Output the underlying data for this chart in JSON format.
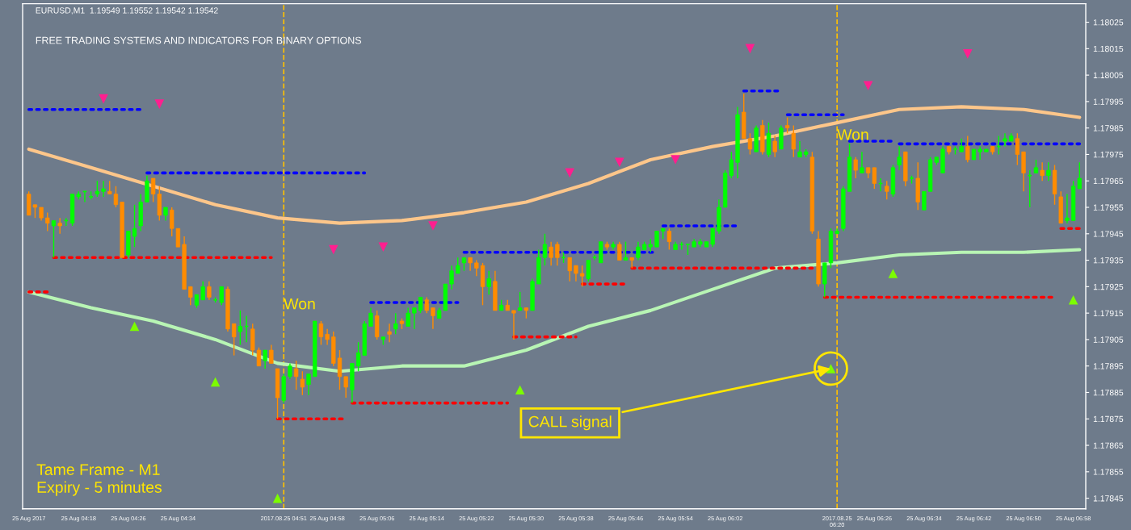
{
  "chart_data": {
    "type": "candlestick",
    "title": "EURUSD,M1  1.19549 1.19552 1.19542 1.19542",
    "subtitle": "FREE TRADING SYSTEMS AND INDICATORS FOR BINARY OPTIONS",
    "colors": [
      "#ff8c00",
      "#ff8c00",
      "#ff8c00",
      "#ff8c00",
      "#00ff00",
      "#ff8c00",
      "#00ff00",
      "#00ff00",
      "#00ff00",
      "#00ff00",
      "#00ff00",
      "#00ff00",
      "#00ff00",
      "#ff8c00",
      "#ff8c00",
      "#ff8c00",
      "#00ff00",
      "#00ff00",
      "#00ff00",
      "#00ff00",
      "#ff8c00",
      "#ff8c00",
      "#00ff00",
      "#ff8c00",
      "#ff8c00",
      "#ff8c00",
      "#ff8c00",
      "#00ff00",
      "#00ff00",
      "#ff8c00",
      "#00ff00",
      "#00ff00",
      "#ff8c00",
      "#ff8c00",
      "#00ff00",
      "#00ff00",
      "#ff8c00",
      "#ff8c00",
      "#00ff00",
      "#ff8c00",
      "#ff8c00",
      "#00ff00",
      "#00ff00",
      "#ff8c00",
      "#ff8c00",
      "#00ff00",
      "#00ff00",
      "#ff8c00",
      "#ff8c00",
      "#ff8c00",
      "#ff8c00",
      "#ff8c00",
      "#00ff00",
      "#00ff00",
      "#00ff00",
      "#00ff00",
      "#ff8c00",
      "#00ff00",
      "#ff8c00",
      "#00ff00",
      "#ff8c00",
      "#00ff00",
      "#00ff00",
      "#00ff00",
      "#ff8c00",
      "#ff8c00",
      "#00ff00",
      "#00ff00",
      "#00ff00",
      "#00ff00",
      "#00ff00",
      "#ff8c00",
      "#ff8c00",
      "#ff8c00",
      "#00ff00",
      "#ff8c00",
      "#00ff00",
      "#ff8c00",
      "#ff8c00",
      "#00ff00",
      "#ff8c00",
      "#00ff00",
      "#00ff00",
      "#00ff00",
      "#ff8c00",
      "#ff8c00",
      "#00ff00",
      "#ff8c00",
      "#ff8c00",
      "#ff8c00",
      "#00ff00",
      "#00ff00",
      "#00ff00",
      "#ff8c00",
      "#00ff00",
      "#ff8c00",
      "#00ff00",
      "#ff8c00",
      "#00ff00",
      "#00ff00",
      "#00ff00",
      "#00ff00",
      "#00ff00",
      "#ff8c00",
      "#00ff00",
      "#00ff00",
      "#00ff00",
      "#00ff00",
      "#00ff00",
      "#00ff00",
      "#00ff00",
      "#00ff00",
      "#00ff00",
      "#00ff00",
      "#00ff00",
      "#ff8c00",
      "#ff8c00",
      "#00ff00",
      "#ff8c00",
      "#00ff00",
      "#ff8c00",
      "#00ff00",
      "#ff8c00",
      "#ff8c00",
      "#00ff00",
      "#00ff00",
      "#ff8c00",
      "#ff8c00",
      "#00ff00",
      "#00ff00",
      "#00ff00",
      "#00ff00",
      "#00ff00",
      "#ff8c00",
      "#00ff00",
      "#ff8c00",
      "#ff8c00",
      "#00ff00",
      "#ff8c00",
      "#00ff00",
      "#00ff00",
      "#ff8c00",
      "#00ff00",
      "#ff8c00",
      "#00ff00",
      "#00ff00",
      "#00ff00",
      "#00ff00",
      "#ff8c00",
      "#00ff00",
      "#00ff00",
      "#ff8c00",
      "#00ff00",
      "#00ff00",
      "#00ff00",
      "#ff8c00",
      "#00ff00",
      "#00ff00",
      "#00ff00",
      "#ff8c00",
      "#ff8c00",
      "#00ff00",
      "#00ff00",
      "#ff8c00",
      "#00ff00",
      "#ff8c00",
      "#ff8c00",
      "#00ff00",
      "#00ff00",
      "#00ff00"
    ],
    "x": [
      "2017-08-25T04:10",
      "2017-08-25T04:11",
      "2017-08-25T04:12",
      "2017-08-25T04:13",
      "2017-08-25T04:14",
      "2017-08-25T04:15",
      "2017-08-25T04:16",
      "2017-08-25T04:17",
      "2017-08-25T04:18",
      "2017-08-25T04:19",
      "2017-08-25T04:20",
      "2017-08-25T04:21",
      "2017-08-25T04:22",
      "2017-08-25T04:23",
      "2017-08-25T04:24",
      "2017-08-25T04:25",
      "2017-08-25T04:26",
      "2017-08-25T04:27",
      "2017-08-25T04:28",
      "2017-08-25T04:29",
      "2017-08-25T04:30",
      "2017-08-25T04:31",
      "2017-08-25T04:32",
      "2017-08-25T04:33",
      "2017-08-25T04:34",
      "2017-08-25T04:35",
      "2017-08-25T04:36",
      "2017-08-25T04:37",
      "2017-08-25T04:38",
      "2017-08-25T04:39",
      "2017-08-25T04:40",
      "2017-08-25T04:41",
      "2017-08-25T04:42",
      "2017-08-25T04:43",
      "2017-08-25T04:44",
      "2017-08-25T04:45",
      "2017-08-25T04:46",
      "2017-08-25T04:47",
      "2017-08-25T04:48",
      "2017-08-25T04:49",
      "2017-08-25T04:50",
      "2017-08-25T04:51",
      "2017-08-25T04:52",
      "2017-08-25T04:53",
      "2017-08-25T04:54",
      "2017-08-25T04:55",
      "2017-08-25T04:56",
      "2017-08-25T04:57",
      "2017-08-25T04:58",
      "2017-08-25T04:59",
      "2017-08-25T05:00",
      "2017-08-25T05:01",
      "2017-08-25T05:02",
      "2017-08-25T05:03",
      "2017-08-25T05:04",
      "2017-08-25T05:05",
      "2017-08-25T05:06",
      "2017-08-25T05:07",
      "2017-08-25T05:08",
      "2017-08-25T05:09",
      "2017-08-25T05:10",
      "2017-08-25T05:11",
      "2017-08-25T05:12",
      "2017-08-25T05:13",
      "2017-08-25T05:14",
      "2017-08-25T05:15",
      "2017-08-25T05:16",
      "2017-08-25T05:17",
      "2017-08-25T05:18",
      "2017-08-25T05:19",
      "2017-08-25T05:20",
      "2017-08-25T05:21",
      "2017-08-25T05:22",
      "2017-08-25T05:23",
      "2017-08-25T05:24",
      "2017-08-25T05:25",
      "2017-08-25T05:26",
      "2017-08-25T05:27",
      "2017-08-25T05:28",
      "2017-08-25T05:29",
      "2017-08-25T05:30",
      "2017-08-25T05:31",
      "2017-08-25T05:32",
      "2017-08-25T05:33",
      "2017-08-25T05:34",
      "2017-08-25T05:35",
      "2017-08-25T05:36",
      "2017-08-25T05:37",
      "2017-08-25T05:38",
      "2017-08-25T05:39",
      "2017-08-25T05:40",
      "2017-08-25T05:41",
      "2017-08-25T05:42",
      "2017-08-25T05:43",
      "2017-08-25T05:44",
      "2017-08-25T05:45",
      "2017-08-25T05:46",
      "2017-08-25T05:47",
      "2017-08-25T05:48",
      "2017-08-25T05:49",
      "2017-08-25T05:50",
      "2017-08-25T05:51",
      "2017-08-25T05:52",
      "2017-08-25T05:53",
      "2017-08-25T05:54",
      "2017-08-25T05:55",
      "2017-08-25T05:56",
      "2017-08-25T05:57",
      "2017-08-25T05:58",
      "2017-08-25T05:59",
      "2017-08-25T06:00",
      "2017-08-25T06:01",
      "2017-08-25T06:02",
      "2017-08-25T06:03",
      "2017-08-25T06:04",
      "2017-08-25T06:05",
      "2017-08-25T06:06",
      "2017-08-25T06:07",
      "2017-08-25T06:08",
      "2017-08-25T06:09",
      "2017-08-25T06:10",
      "2017-08-25T06:11",
      "2017-08-25T06:12",
      "2017-08-25T06:13",
      "2017-08-25T06:14",
      "2017-08-25T06:15",
      "2017-08-25T06:16",
      "2017-08-25T06:17",
      "2017-08-25T06:18",
      "2017-08-25T06:19",
      "2017-08-25T06:20",
      "2017-08-25T06:21",
      "2017-08-25T06:22",
      "2017-08-25T06:23",
      "2017-08-25T06:24",
      "2017-08-25T06:25",
      "2017-08-25T06:26",
      "2017-08-25T06:27",
      "2017-08-25T06:28",
      "2017-08-25T06:29",
      "2017-08-25T06:30",
      "2017-08-25T06:31",
      "2017-08-25T06:32",
      "2017-08-25T06:33",
      "2017-08-25T06:34",
      "2017-08-25T06:35",
      "2017-08-25T06:36",
      "2017-08-25T06:37",
      "2017-08-25T06:38",
      "2017-08-25T06:39",
      "2017-08-25T06:40",
      "2017-08-25T06:41",
      "2017-08-25T06:42",
      "2017-08-25T06:43",
      "2017-08-25T06:44",
      "2017-08-25T06:45",
      "2017-08-25T06:46",
      "2017-08-25T06:47",
      "2017-08-25T06:48",
      "2017-08-25T06:49",
      "2017-08-25T06:50",
      "2017-08-25T06:51",
      "2017-08-25T06:52",
      "2017-08-25T06:53",
      "2017-08-25T06:54",
      "2017-08-25T06:55",
      "2017-08-25T06:56",
      "2017-08-25T06:57",
      "2017-08-25T06:58",
      "2017-08-25T06:59"
    ],
    "ohlc": [
      [
        1.1796,
        1.17961,
        1.17952,
        1.17952
      ],
      [
        1.17956,
        1.17956,
        1.17951,
        1.17955
      ],
      [
        1.17955,
        1.17955,
        1.1795,
        1.17951
      ],
      [
        1.17951,
        1.17953,
        1.17946,
        1.17949
      ],
      [
        1.17948,
        1.1795,
        1.17936,
        1.1795
      ],
      [
        1.17949,
        1.17951,
        1.17945,
        1.17948
      ],
      [
        1.1795,
        1.17951,
        1.17948,
        1.1795
      ],
      [
        1.17949,
        1.1796,
        1.17948,
        1.1796
      ],
      [
        1.17959,
        1.17961,
        1.17958,
        1.1796
      ],
      [
        1.17961,
        1.17961,
        1.17957,
        1.17961
      ],
      [
        1.17959,
        1.17961,
        1.17958,
        1.17959
      ],
      [
        1.1796,
        1.17965,
        1.17959,
        1.17961
      ],
      [
        1.17961,
        1.17965,
        1.17959,
        1.17962
      ],
      [
        1.17961,
        1.17965,
        1.1796,
        1.1796
      ],
      [
        1.1796,
        1.17963,
        1.17955,
        1.17956
      ],
      [
        1.17957,
        1.17957,
        1.17936,
        1.17936
      ],
      [
        1.17937,
        1.17946,
        1.17936,
        1.17946
      ],
      [
        1.17944,
        1.17956,
        1.1794,
        1.17947
      ],
      [
        1.17948,
        1.1796,
        1.17946,
        1.17957
      ],
      [
        1.17957,
        1.17967,
        1.17957,
        1.17965
      ],
      [
        1.17966,
        1.17966,
        1.17957,
        1.1796
      ],
      [
        1.1796,
        1.17963,
        1.1795,
        1.17952
      ],
      [
        1.17952,
        1.17955,
        1.1795,
        1.17955
      ],
      [
        1.17954,
        1.17955,
        1.17944,
        1.17947
      ],
      [
        1.17947,
        1.17947,
        1.1794,
        1.1794
      ],
      [
        1.17941,
        1.17944,
        1.17924,
        1.17924
      ],
      [
        1.17925,
        1.17925,
        1.17918,
        1.17921
      ],
      [
        1.17918,
        1.17922,
        1.17917,
        1.17922
      ],
      [
        1.1792,
        1.17927,
        1.1792,
        1.17925
      ],
      [
        1.17925,
        1.17927,
        1.1792,
        1.17921
      ],
      [
        1.1792,
        1.17921,
        1.17919,
        1.1792
      ],
      [
        1.17919,
        1.17925,
        1.17918,
        1.17925
      ],
      [
        1.17924,
        1.17925,
        1.17908,
        1.17909
      ],
      [
        1.17911,
        1.17911,
        1.17899,
        1.17906
      ],
      [
        1.17908,
        1.17916,
        1.17903,
        1.1791
      ],
      [
        1.1791,
        1.17914,
        1.17904,
        1.1791
      ],
      [
        1.17909,
        1.17911,
        1.17899,
        1.17901
      ],
      [
        1.17901,
        1.17902,
        1.17895,
        1.17895
      ],
      [
        1.17897,
        1.17901,
        1.17894,
        1.17901
      ],
      [
        1.17901,
        1.17903,
        1.17896,
        1.17896
      ],
      [
        1.17894,
        1.17894,
        1.17875,
        1.17883
      ],
      [
        1.17882,
        1.17892,
        1.17881,
        1.17891
      ],
      [
        1.17891,
        1.17896,
        1.1789,
        1.17895
      ],
      [
        1.17894,
        1.17897,
        1.17886,
        1.17891
      ],
      [
        1.1789,
        1.17893,
        1.17884,
        1.17887
      ],
      [
        1.17888,
        1.17892,
        1.17884,
        1.17892
      ],
      [
        1.17891,
        1.17912,
        1.17891,
        1.17912
      ],
      [
        1.17911,
        1.17912,
        1.17903,
        1.17906
      ],
      [
        1.17907,
        1.17909,
        1.17903,
        1.17905
      ],
      [
        1.17906,
        1.17908,
        1.17895,
        1.17896
      ],
      [
        1.17898,
        1.17901,
        1.17886,
        1.17891
      ],
      [
        1.17891,
        1.17891,
        1.17883,
        1.17887
      ],
      [
        1.17886,
        1.17896,
        1.17881,
        1.17896
      ],
      [
        1.17895,
        1.17904,
        1.17893,
        1.179
      ],
      [
        1.17899,
        1.17912,
        1.17899,
        1.17911
      ],
      [
        1.1791,
        1.17917,
        1.1791,
        1.17915
      ],
      [
        1.17914,
        1.17916,
        1.17905,
        1.17906
      ],
      [
        1.17905,
        1.17906,
        1.17903,
        1.17906
      ],
      [
        1.17908,
        1.17911,
        1.17904,
        1.17907
      ],
      [
        1.17909,
        1.17915,
        1.17907,
        1.17911
      ],
      [
        1.17912,
        1.17913,
        1.17909,
        1.17911
      ],
      [
        1.1791,
        1.17917,
        1.1791,
        1.17915
      ],
      [
        1.17915,
        1.17917,
        1.17909,
        1.17917
      ],
      [
        1.17916,
        1.17921,
        1.17915,
        1.17921
      ],
      [
        1.1792,
        1.17921,
        1.17915,
        1.17916
      ],
      [
        1.17917,
        1.17917,
        1.17909,
        1.17914
      ],
      [
        1.17913,
        1.17917,
        1.17913,
        1.17916
      ],
      [
        1.17916,
        1.17926,
        1.17916,
        1.17926
      ],
      [
        1.17926,
        1.17933,
        1.17924,
        1.17931
      ],
      [
        1.1793,
        1.17936,
        1.1793,
        1.17933
      ],
      [
        1.17934,
        1.17936,
        1.17931,
        1.17936
      ],
      [
        1.17936,
        1.17936,
        1.17931,
        1.17934
      ],
      [
        1.17934,
        1.17935,
        1.17929,
        1.17932
      ],
      [
        1.17933,
        1.17934,
        1.17918,
        1.17925
      ],
      [
        1.17925,
        1.17931,
        1.17922,
        1.17928
      ],
      [
        1.17927,
        1.17931,
        1.17916,
        1.17916
      ],
      [
        1.17916,
        1.1792,
        1.17916,
        1.17918
      ],
      [
        1.17918,
        1.1792,
        1.17916,
        1.17916
      ],
      [
        1.17916,
        1.17916,
        1.17905,
        1.17915
      ],
      [
        1.17916,
        1.17923,
        1.17916,
        1.17917
      ],
      [
        1.17917,
        1.17917,
        1.17913,
        1.17916
      ],
      [
        1.17916,
        1.17928,
        1.17916,
        1.17927
      ],
      [
        1.17926,
        1.17939,
        1.17926,
        1.17936
      ],
      [
        1.17936,
        1.17945,
        1.17933,
        1.17941
      ],
      [
        1.1794,
        1.17942,
        1.17933,
        1.17936
      ],
      [
        1.17941,
        1.17942,
        1.17933,
        1.17936
      ],
      [
        1.17936,
        1.17938,
        1.17934,
        1.17936
      ],
      [
        1.17936,
        1.17936,
        1.17927,
        1.17931
      ],
      [
        1.17933,
        1.17933,
        1.17927,
        1.1793
      ],
      [
        1.1793,
        1.17933,
        1.17925,
        1.17929
      ],
      [
        1.17928,
        1.17935,
        1.17927,
        1.17935
      ],
      [
        1.17936,
        1.17937,
        1.17935,
        1.17936
      ],
      [
        1.17934,
        1.17942,
        1.17934,
        1.17942
      ],
      [
        1.17941,
        1.17942,
        1.17939,
        1.1794
      ],
      [
        1.1794,
        1.17942,
        1.17939,
        1.17941
      ],
      [
        1.17941,
        1.17942,
        1.17935,
        1.17935
      ],
      [
        1.17935,
        1.17942,
        1.17935,
        1.17936
      ],
      [
        1.17936,
        1.17936,
        1.17932,
        1.17935
      ],
      [
        1.17936,
        1.17942,
        1.17935,
        1.1794
      ],
      [
        1.17939,
        1.17942,
        1.17939,
        1.17941
      ],
      [
        1.1794,
        1.17943,
        1.17938,
        1.17941
      ],
      [
        1.1794,
        1.17946,
        1.1794,
        1.17946
      ],
      [
        1.17946,
        1.17947,
        1.17943,
        1.17947
      ],
      [
        1.17946,
        1.17947,
        1.17939,
        1.17942
      ],
      [
        1.17939,
        1.17942,
        1.17939,
        1.17941
      ],
      [
        1.17941,
        1.17942,
        1.17939,
        1.17941
      ],
      [
        1.17941,
        1.17941,
        1.17937,
        1.17941
      ],
      [
        1.1794,
        1.17943,
        1.1794,
        1.17942
      ],
      [
        1.17941,
        1.17943,
        1.1794,
        1.17942
      ],
      [
        1.1794,
        1.17942,
        1.1794,
        1.17942
      ],
      [
        1.17941,
        1.17947,
        1.1794,
        1.17947
      ],
      [
        1.17946,
        1.17958,
        1.17945,
        1.17955
      ],
      [
        1.17955,
        1.17969,
        1.17955,
        1.17968
      ],
      [
        1.17967,
        1.17976,
        1.17966,
        1.17973
      ],
      [
        1.17972,
        1.17993,
        1.17966,
        1.1799
      ],
      [
        1.17991,
        1.17998,
        1.17981,
        1.17981
      ],
      [
        1.17981,
        1.17983,
        1.17975,
        1.17977
      ],
      [
        1.17976,
        1.17986,
        1.17976,
        1.17985
      ],
      [
        1.17986,
        1.17988,
        1.17975,
        1.17976
      ],
      [
        1.17975,
        1.17987,
        1.17974,
        1.17983
      ],
      [
        1.1798,
        1.17982,
        1.17974,
        1.17976
      ],
      [
        1.17977,
        1.17986,
        1.17977,
        1.17985
      ],
      [
        1.17986,
        1.17989,
        1.17983,
        1.17985
      ],
      [
        1.17983,
        1.17986,
        1.17974,
        1.17977
      ],
      [
        1.17974,
        1.1798,
        1.17974,
        1.17976
      ],
      [
        1.17975,
        1.17977,
        1.17974,
        1.17976
      ],
      [
        1.17974,
        1.17976,
        1.17945,
        1.17946
      ],
      [
        1.17943,
        1.17946,
        1.17925,
        1.17926
      ],
      [
        1.17926,
        1.17934,
        1.17921,
        1.17934
      ],
      [
        1.17934,
        1.17947,
        1.17932,
        1.17946
      ],
      [
        1.17945,
        1.17947,
        1.17945,
        1.17946
      ],
      [
        1.17947,
        1.17963,
        1.17946,
        1.17962
      ],
      [
        1.17961,
        1.17979,
        1.17961,
        1.17974
      ],
      [
        1.17973,
        1.17974,
        1.17966,
        1.17969
      ],
      [
        1.17968,
        1.17976,
        1.17968,
        1.1797
      ],
      [
        1.1797,
        1.1797,
        1.17966,
        1.17968
      ],
      [
        1.1797,
        1.1797,
        1.17962,
        1.17964
      ],
      [
        1.17964,
        1.17966,
        1.17961,
        1.17964
      ],
      [
        1.17963,
        1.17965,
        1.17958,
        1.17961
      ],
      [
        1.1796,
        1.17971,
        1.17959,
        1.1797
      ],
      [
        1.17971,
        1.17978,
        1.17969,
        1.17974
      ],
      [
        1.17976,
        1.17976,
        1.17963,
        1.17965
      ],
      [
        1.17966,
        1.17967,
        1.17964,
        1.17966
      ],
      [
        1.17966,
        1.17972,
        1.17954,
        1.17957
      ],
      [
        1.17954,
        1.17961,
        1.17954,
        1.17961
      ],
      [
        1.17961,
        1.17974,
        1.17961,
        1.17973
      ],
      [
        1.17972,
        1.17974,
        1.17971,
        1.17974
      ],
      [
        1.17968,
        1.17978,
        1.17968,
        1.17977
      ],
      [
        1.17978,
        1.17978,
        1.17975,
        1.17976
      ],
      [
        1.17977,
        1.17978,
        1.17975,
        1.17977
      ],
      [
        1.17976,
        1.17981,
        1.17976,
        1.17978
      ],
      [
        1.17978,
        1.17982,
        1.17972,
        1.17973
      ],
      [
        1.17973,
        1.17977,
        1.17973,
        1.17977
      ],
      [
        1.17976,
        1.17978,
        1.17973,
        1.17977
      ],
      [
        1.17976,
        1.17977,
        1.17976,
        1.17977
      ],
      [
        1.17978,
        1.17978,
        1.17975,
        1.17976
      ],
      [
        1.17978,
        1.17982,
        1.17975,
        1.17978
      ],
      [
        1.1798,
        1.17983,
        1.17978,
        1.17981
      ],
      [
        1.1798,
        1.17983,
        1.1798,
        1.17982
      ],
      [
        1.17981,
        1.17983,
        1.17971,
        1.17975
      ],
      [
        1.17976,
        1.17976,
        1.17961,
        1.17968
      ],
      [
        1.17967,
        1.17969,
        1.17955,
        1.17967
      ],
      [
        1.17968,
        1.17973,
        1.17968,
        1.1797
      ],
      [
        1.17969,
        1.17972,
        1.17965,
        1.17967
      ],
      [
        1.17967,
        1.17972,
        1.17965,
        1.17969
      ],
      [
        1.17969,
        1.17971,
        1.17956,
        1.1796
      ],
      [
        1.17959,
        1.17961,
        1.17949,
        1.17949
      ],
      [
        1.1795,
        1.1796,
        1.17949,
        1.17951
      ],
      [
        1.1795,
        1.17965,
        1.1795,
        1.17963
      ],
      [
        1.17962,
        1.17972,
        1.17962,
        1.17966
      ]
    ],
    "series": [
      {
        "type": "line",
        "color": "#fdc68a",
        "line_style": "solid",
        "x": [
          "2017-08-25T04:10",
          "2017-08-25T04:20",
          "2017-08-25T04:30",
          "2017-08-25T04:40",
          "2017-08-25T04:50",
          "2017-08-25T05:00",
          "2017-08-25T05:10",
          "2017-08-25T05:20",
          "2017-08-25T05:30",
          "2017-08-25T05:40",
          "2017-08-25T05:50",
          "2017-08-25T06:00",
          "2017-08-25T06:10",
          "2017-08-25T06:20",
          "2017-08-25T06:30",
          "2017-08-25T06:40",
          "2017-08-25T06:50",
          "2017-08-25T06:59"
        ],
        "values": [
          1.17977,
          1.1797,
          1.17963,
          1.17956,
          1.17951,
          1.17949,
          1.1795,
          1.17953,
          1.17957,
          1.17964,
          1.17973,
          1.17978,
          1.17982,
          1.17987,
          1.17992,
          1.17993,
          1.17992,
          1.17989
        ]
      },
      {
        "type": "line",
        "color": "#b8f5b4",
        "line_style": "solid",
        "x": [
          "2017-08-25T04:10",
          "2017-08-25T04:20",
          "2017-08-25T04:30",
          "2017-08-25T04:40",
          "2017-08-25T04:50",
          "2017-08-25T05:00",
          "2017-08-25T05:10",
          "2017-08-25T05:20",
          "2017-08-25T05:30",
          "2017-08-25T05:40",
          "2017-08-25T05:50",
          "2017-08-25T06:00",
          "2017-08-25T06:10",
          "2017-08-25T06:20",
          "2017-08-25T06:30",
          "2017-08-25T06:40",
          "2017-08-25T06:50",
          "2017-08-25T06:59"
        ],
        "values": [
          1.17923,
          1.17917,
          1.17912,
          1.17905,
          1.17896,
          1.17893,
          1.17895,
          1.17895,
          1.17901,
          1.1791,
          1.17916,
          1.17924,
          1.17932,
          1.17934,
          1.17937,
          1.17938,
          1.17938,
          1.17939
        ]
      },
      {
        "type": "line",
        "color": "#0000ff",
        "line_style": "dotted",
        "x": [
          "2017-08-25T04:10",
          "2017-08-25T04:28"
        ],
        "values": [
          1.17992,
          1.17992
        ]
      },
      {
        "type": "line",
        "color": "#0000ff",
        "line_style": "dotted",
        "x": [
          "2017-08-25T04:29",
          "2017-08-25T05:04"
        ],
        "values": [
          1.17968,
          1.17968
        ]
      },
      {
        "type": "line",
        "color": "#0000ff",
        "line_style": "dotted",
        "x": [
          "2017-08-25T05:05",
          "2017-08-25T05:19"
        ],
        "values": [
          1.17919,
          1.17919
        ]
      },
      {
        "type": "line",
        "color": "#0000ff",
        "line_style": "dotted",
        "x": [
          "2017-08-25T05:20",
          "2017-08-25T05:51"
        ],
        "values": [
          1.17938,
          1.17938
        ]
      },
      {
        "type": "line",
        "color": "#0000ff",
        "line_style": "dotted",
        "x": [
          "2017-08-25T05:52",
          "2017-08-25T06:04"
        ],
        "values": [
          1.17948,
          1.17948
        ]
      },
      {
        "type": "line",
        "color": "#0000ff",
        "line_style": "dotted",
        "x": [
          "2017-08-25T06:05",
          "2017-08-25T06:11"
        ],
        "values": [
          1.17999,
          1.17999
        ]
      },
      {
        "type": "line",
        "color": "#0000ff",
        "line_style": "dotted",
        "x": [
          "2017-08-25T06:12",
          "2017-08-25T06:21"
        ],
        "values": [
          1.1799,
          1.1799
        ]
      },
      {
        "type": "line",
        "color": "#0000ff",
        "line_style": "dotted",
        "x": [
          "2017-08-25T06:22",
          "2017-08-25T06:29"
        ],
        "values": [
          1.1798,
          1.1798
        ]
      },
      {
        "type": "line",
        "color": "#0000ff",
        "line_style": "dotted",
        "x": [
          "2017-08-25T06:30",
          "2017-08-25T06:59"
        ],
        "values": [
          1.17979,
          1.17979
        ]
      },
      {
        "type": "line",
        "color": "#ff0000",
        "line_style": "dotted",
        "x": [
          "2017-08-25T04:10",
          "2017-08-25T04:13"
        ],
        "values": [
          1.17923,
          1.17923
        ]
      },
      {
        "type": "line",
        "color": "#ff0000",
        "line_style": "dotted",
        "x": [
          "2017-08-25T04:14",
          "2017-08-25T04:49"
        ],
        "values": [
          1.17936,
          1.17936
        ]
      },
      {
        "type": "line",
        "color": "#ff0000",
        "line_style": "dotted",
        "x": [
          "2017-08-25T04:50",
          "2017-08-25T05:01"
        ],
        "values": [
          1.17875,
          1.17875
        ]
      },
      {
        "type": "line",
        "color": "#ff0000",
        "line_style": "dotted",
        "x": [
          "2017-08-25T05:02",
          "2017-08-25T05:27"
        ],
        "values": [
          1.17881,
          1.17881
        ]
      },
      {
        "type": "line",
        "color": "#ff0000",
        "line_style": "dotted",
        "x": [
          "2017-08-25T05:28",
          "2017-08-25T05:38"
        ],
        "values": [
          1.17906,
          1.17906
        ]
      },
      {
        "type": "line",
        "color": "#ff0000",
        "line_style": "dotted",
        "x": [
          "2017-08-25T05:39",
          "2017-08-25T05:46"
        ],
        "values": [
          1.17926,
          1.17926
        ]
      },
      {
        "type": "line",
        "color": "#ff0000",
        "line_style": "dotted",
        "x": [
          "2017-08-25T05:47",
          "2017-08-25T06:16"
        ],
        "values": [
          1.17932,
          1.17932
        ]
      },
      {
        "type": "line",
        "color": "#ff0000",
        "line_style": "dotted",
        "x": [
          "2017-08-25T06:18",
          "2017-08-25T06:55"
        ],
        "values": [
          1.17921,
          1.17921
        ]
      },
      {
        "type": "line",
        "color": "#ff0000",
        "line_style": "dotted",
        "x": [
          "2017-08-25T06:56",
          "2017-08-25T06:59"
        ],
        "values": [
          1.17947,
          1.17947
        ]
      },
      {
        "type": "scatter",
        "color": "#ff1f8f",
        "marker": "triangle-down",
        "x": [
          "2017-08-25T04:22",
          "2017-08-25T04:31",
          "2017-08-25T04:59",
          "2017-08-25T05:07",
          "2017-08-25T05:15",
          "2017-08-25T05:37",
          "2017-08-25T05:45",
          "2017-08-25T05:54",
          "2017-08-25T06:06",
          "2017-08-25T06:25",
          "2017-08-25T06:41"
        ],
        "values": [
          1.17996,
          1.17994,
          1.17939,
          1.1794,
          1.17948,
          1.17968,
          1.17972,
          1.17973,
          1.18015,
          1.18001,
          1.18013
        ]
      },
      {
        "type": "scatter",
        "color": "#7cfc00",
        "marker": "triangle-up",
        "x": [
          "2017-08-25T04:27",
          "2017-08-25T04:40",
          "2017-08-25T04:50",
          "2017-08-25T05:29",
          "2017-08-25T06:19",
          "2017-08-25T06:29",
          "2017-08-25T06:58"
        ],
        "values": [
          1.1791,
          1.17889,
          1.17845,
          1.17886,
          1.17894,
          1.1793,
          1.1792
        ]
      }
    ],
    "ref_lines": [
      {
        "axis": "x",
        "value": "2017-08-25T04:51",
        "color": "#ffc000",
        "line_style": "dashed"
      },
      {
        "axis": "x",
        "value": "2017-08-25T06:20",
        "color": "#ffc000",
        "line_style": "dashed"
      }
    ],
    "annotations": [
      {
        "text": "Won",
        "x": "2017-08-25T04:51",
        "y": 1.17918
      },
      {
        "text": "Won",
        "x": "2017-08-25T06:20",
        "y": 1.17982
      },
      {
        "text": "CALL signal",
        "x": "2017-08-25T06:19",
        "y": 1.17894
      },
      "Tame Frame - M1",
      "Expiry - 5 minutes"
    ],
    "xlim": [
      "2017-08-25T04:09",
      "2017-08-25T07:00"
    ],
    "xticks": [
      {
        "value": "2017-08-25T04:10",
        "label": "25 Aug 2017"
      },
      {
        "value": "2017-08-25T04:18",
        "label": "25 Aug 04:18"
      },
      {
        "value": "2017-08-25T04:26",
        "label": "25 Aug 04:26"
      },
      {
        "value": "2017-08-25T04:34",
        "label": "25 Aug 04:34"
      },
      {
        "value": "2017-08-25T04:51",
        "label": "2017.08.25 04:51"
      },
      {
        "value": "2017-08-25T04:58",
        "label": "25 Aug 04:58"
      },
      {
        "value": "2017-08-25T05:06",
        "label": "25 Aug 05:06"
      },
      {
        "value": "2017-08-25T05:14",
        "label": "25 Aug 05:14"
      },
      {
        "value": "2017-08-25T05:22",
        "label": "25 Aug 05:22"
      },
      {
        "value": "2017-08-25T05:30",
        "label": "25 Aug 05:30"
      },
      {
        "value": "2017-08-25T05:38",
        "label": "25 Aug 05:38"
      },
      {
        "value": "2017-08-25T05:46",
        "label": "25 Aug 05:46"
      },
      {
        "value": "2017-08-25T05:54",
        "label": "25 Aug 05:54"
      },
      {
        "value": "2017-08-25T06:02",
        "label": "25 Aug 06:02"
      },
      {
        "value": "2017-08-25T06:20",
        "label": "2017.08.25 06:20"
      },
      {
        "value": "2017-08-25T06:26",
        "label": "25 Aug 06:26"
      },
      {
        "value": "2017-08-25T06:34",
        "label": "25 Aug 06:34"
      },
      {
        "value": "2017-08-25T06:42",
        "label": "25 Aug 06:42"
      },
      {
        "value": "2017-08-25T06:50",
        "label": "25 Aug 06:50"
      },
      {
        "value": "2017-08-25T06:58",
        "label": "25 Aug 06:58"
      }
    ],
    "ylim": [
      1.17841,
      1.18032
    ],
    "yticks": [
      1.18025,
      1.18015,
      1.18005,
      1.17995,
      1.17985,
      1.17975,
      1.17965,
      1.17955,
      1.17945,
      1.17935,
      1.17925,
      1.17915,
      1.17905,
      1.17895,
      1.17885,
      1.17875,
      1.17865,
      1.17855,
      1.17845
    ],
    "grid": false,
    "legend": false
  }
}
